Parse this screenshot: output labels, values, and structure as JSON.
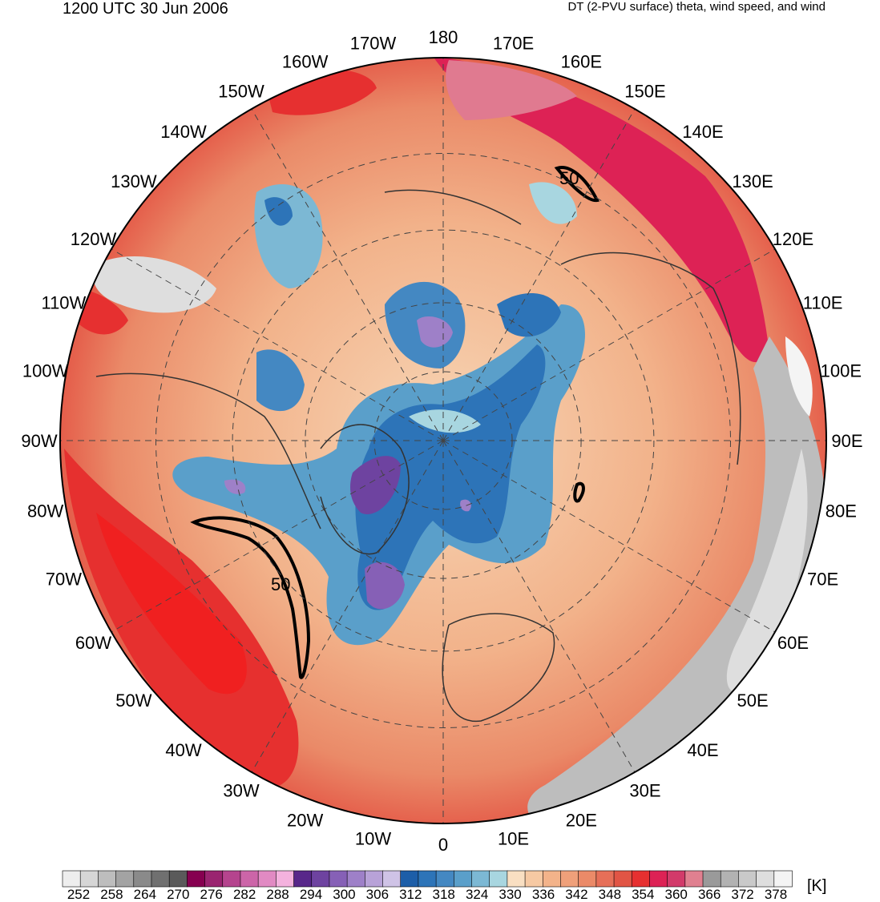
{
  "header": {
    "time": "1200 UTC 30 Jun 2006",
    "title": "DT (2-PVU surface) theta, wind speed, and wind"
  },
  "longitude_labels": [
    "180",
    "170E",
    "160E",
    "150E",
    "140E",
    "130E",
    "120E",
    "110E",
    "100E",
    "90E",
    "80E",
    "70E",
    "60E",
    "50E",
    "40E",
    "30E",
    "20E",
    "10E",
    "0",
    "10W",
    "20W",
    "30W",
    "40W",
    "50W",
    "60W",
    "70W",
    "80W",
    "90W",
    "100W",
    "110W",
    "120W",
    "130W",
    "140W",
    "150W",
    "160W",
    "170W"
  ],
  "contour_label": "50",
  "colorbar": {
    "unit": "[K]",
    "levels": [
      252,
      258,
      264,
      270,
      276,
      282,
      288,
      294,
      300,
      306,
      312,
      318,
      324,
      330,
      336,
      342,
      348,
      354,
      360,
      366,
      372,
      378
    ],
    "colors": [
      "#eeeeee",
      "#d6d6d6",
      "#bdbdbd",
      "#a3a3a3",
      "#8a8a8a",
      "#707070",
      "#5a5a5a",
      "#860050",
      "#9a2470",
      "#b5448e",
      "#cc65a8",
      "#e18ac3",
      "#f4b2de",
      "#58278a",
      "#6e43a0",
      "#8660b6",
      "#9e80c8",
      "#b8a2d8",
      "#cfc3e6",
      "#1d5ea8",
      "#2d74b8",
      "#4488c2",
      "#5a9fca",
      "#7cb8d4",
      "#a8d6e0",
      "#f9dfc2",
      "#f6c9a3",
      "#f3b38a",
      "#efa07a",
      "#eb8a68",
      "#e66f58",
      "#e15545",
      "#e63030",
      "#dd2255",
      "#d23a6a",
      "#e08090",
      "#9a9a9a",
      "#b2b2b2",
      "#c9c9c9",
      "#dedede",
      "#f4f4f4"
    ]
  }
}
